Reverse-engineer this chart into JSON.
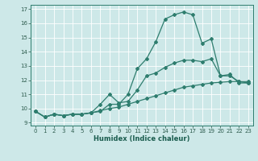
{
  "xlabel": "Humidex (Indice chaleur)",
  "background_color": "#cde8e8",
  "line_color": "#2e7d6e",
  "xlim": [
    -0.5,
    23.5
  ],
  "ylim": [
    8.8,
    17.3
  ],
  "yticks": [
    9,
    10,
    11,
    12,
    13,
    14,
    15,
    16,
    17
  ],
  "xticks": [
    0,
    1,
    2,
    3,
    4,
    5,
    6,
    7,
    8,
    9,
    10,
    11,
    12,
    13,
    14,
    15,
    16,
    17,
    18,
    19,
    20,
    21,
    22,
    23
  ],
  "line1_x": [
    0,
    1,
    2,
    3,
    4,
    5,
    6,
    7,
    8,
    9,
    10,
    11,
    12,
    13,
    14,
    15,
    16,
    17,
    18,
    19,
    20,
    21,
    22,
    23
  ],
  "line1_y": [
    9.8,
    9.4,
    9.6,
    9.5,
    9.6,
    9.6,
    9.7,
    9.8,
    10.3,
    10.3,
    11.0,
    12.8,
    13.5,
    14.7,
    16.3,
    16.6,
    16.8,
    16.6,
    14.6,
    14.9,
    12.3,
    12.4,
    11.8,
    11.8
  ],
  "line2_x": [
    0,
    1,
    2,
    3,
    4,
    5,
    6,
    7,
    8,
    9,
    10,
    11,
    12,
    13,
    14,
    15,
    16,
    17,
    18,
    19,
    20,
    21,
    22,
    23
  ],
  "line2_y": [
    9.8,
    9.4,
    9.6,
    9.5,
    9.6,
    9.6,
    9.7,
    10.3,
    11.0,
    10.4,
    10.5,
    11.3,
    12.3,
    12.5,
    12.9,
    13.2,
    13.4,
    13.4,
    13.3,
    13.5,
    12.3,
    12.3,
    11.9,
    11.8
  ],
  "line3_x": [
    0,
    1,
    2,
    3,
    4,
    5,
    6,
    7,
    8,
    9,
    10,
    11,
    12,
    13,
    14,
    15,
    16,
    17,
    18,
    19,
    20,
    21,
    22,
    23
  ],
  "line3_y": [
    9.8,
    9.4,
    9.6,
    9.5,
    9.6,
    9.6,
    9.7,
    9.85,
    10.0,
    10.1,
    10.3,
    10.5,
    10.7,
    10.9,
    11.1,
    11.3,
    11.5,
    11.6,
    11.7,
    11.8,
    11.85,
    11.9,
    11.9,
    11.9
  ]
}
